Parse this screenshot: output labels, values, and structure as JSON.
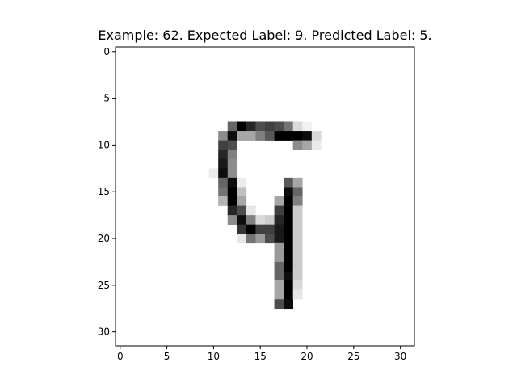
{
  "chart_data": {
    "type": "heatmap",
    "title": "Example: 62. Expected Label: 9. Predicted Label: 5.",
    "colormap": "gray_r",
    "grid": false,
    "rows": 32,
    "cols": 32,
    "xlim": [
      -0.5,
      31.5
    ],
    "ylim": [
      31.5,
      -0.5
    ],
    "x_ticks": [
      0,
      5,
      10,
      15,
      20,
      25,
      30
    ],
    "y_ticks": [
      0,
      5,
      10,
      15,
      20,
      25,
      30
    ],
    "x_tick_labels": [
      "0",
      "5",
      "10",
      "15",
      "20",
      "25",
      "30"
    ],
    "y_tick_labels": [
      "0",
      "5",
      "10",
      "15",
      "20",
      "25",
      "30"
    ],
    "pixels": [
      [
        8,
        12,
        0.6
      ],
      [
        8,
        13,
        1.0
      ],
      [
        8,
        14,
        0.85
      ],
      [
        8,
        15,
        0.7
      ],
      [
        8,
        16,
        0.75
      ],
      [
        8,
        17,
        0.7
      ],
      [
        8,
        18,
        0.55
      ],
      [
        8,
        19,
        0.15
      ],
      [
        8,
        20,
        0.05
      ],
      [
        9,
        11,
        0.45
      ],
      [
        9,
        12,
        0.95
      ],
      [
        9,
        13,
        0.35
      ],
      [
        9,
        14,
        0.35
      ],
      [
        9,
        15,
        0.5
      ],
      [
        9,
        16,
        0.65
      ],
      [
        9,
        17,
        1.0
      ],
      [
        9,
        18,
        1.0
      ],
      [
        9,
        19,
        1.0
      ],
      [
        9,
        20,
        0.95
      ],
      [
        9,
        21,
        0.15
      ],
      [
        10,
        11,
        0.75
      ],
      [
        10,
        12,
        0.7
      ],
      [
        10,
        19,
        0.45
      ],
      [
        10,
        20,
        0.35
      ],
      [
        10,
        21,
        0.08
      ],
      [
        11,
        11,
        0.85
      ],
      [
        11,
        12,
        0.5
      ],
      [
        12,
        11,
        0.9
      ],
      [
        12,
        12,
        0.45
      ],
      [
        13,
        10,
        0.08
      ],
      [
        13,
        11,
        0.95
      ],
      [
        13,
        12,
        0.45
      ],
      [
        14,
        11,
        0.6
      ],
      [
        14,
        12,
        0.95
      ],
      [
        14,
        13,
        0.08
      ],
      [
        14,
        18,
        0.65
      ],
      [
        14,
        19,
        0.35
      ],
      [
        15,
        11,
        0.55
      ],
      [
        15,
        12,
        1.0
      ],
      [
        15,
        13,
        0.25
      ],
      [
        15,
        18,
        0.95
      ],
      [
        15,
        19,
        0.6
      ],
      [
        16,
        11,
        0.3
      ],
      [
        16,
        12,
        1.0
      ],
      [
        16,
        13,
        0.35
      ],
      [
        16,
        17,
        0.35
      ],
      [
        16,
        18,
        1.0
      ],
      [
        16,
        19,
        0.5
      ],
      [
        17,
        12,
        0.85
      ],
      [
        17,
        13,
        0.7
      ],
      [
        17,
        14,
        0.1
      ],
      [
        17,
        17,
        0.75
      ],
      [
        17,
        18,
        1.0
      ],
      [
        17,
        19,
        0.2
      ],
      [
        18,
        12,
        0.45
      ],
      [
        18,
        13,
        0.95
      ],
      [
        18,
        14,
        0.5
      ],
      [
        18,
        15,
        0.15
      ],
      [
        18,
        16,
        0.2
      ],
      [
        18,
        17,
        0.85
      ],
      [
        18,
        18,
        1.0
      ],
      [
        18,
        19,
        0.2
      ],
      [
        19,
        13,
        0.8
      ],
      [
        19,
        14,
        1.0
      ],
      [
        19,
        15,
        0.75
      ],
      [
        19,
        16,
        0.75
      ],
      [
        19,
        17,
        0.9
      ],
      [
        19,
        18,
        1.0
      ],
      [
        19,
        19,
        0.2
      ],
      [
        20,
        13,
        0.1
      ],
      [
        20,
        14,
        0.55
      ],
      [
        20,
        15,
        0.4
      ],
      [
        20,
        16,
        0.7
      ],
      [
        20,
        17,
        0.9
      ],
      [
        20,
        18,
        1.0
      ],
      [
        20,
        19,
        0.2
      ],
      [
        21,
        17,
        0.4
      ],
      [
        21,
        18,
        1.0
      ],
      [
        21,
        19,
        0.2
      ],
      [
        22,
        17,
        0.4
      ],
      [
        22,
        18,
        1.0
      ],
      [
        22,
        19,
        0.2
      ],
      [
        23,
        17,
        0.6
      ],
      [
        23,
        18,
        1.0
      ],
      [
        23,
        19,
        0.2
      ],
      [
        24,
        17,
        0.6
      ],
      [
        24,
        18,
        0.95
      ],
      [
        24,
        19,
        0.2
      ],
      [
        25,
        17,
        0.35
      ],
      [
        25,
        18,
        1.0
      ],
      [
        25,
        19,
        0.15
      ],
      [
        26,
        17,
        0.35
      ],
      [
        26,
        18,
        1.0
      ],
      [
        26,
        19,
        0.1
      ],
      [
        27,
        17,
        0.7
      ],
      [
        27,
        18,
        0.95
      ]
    ]
  }
}
